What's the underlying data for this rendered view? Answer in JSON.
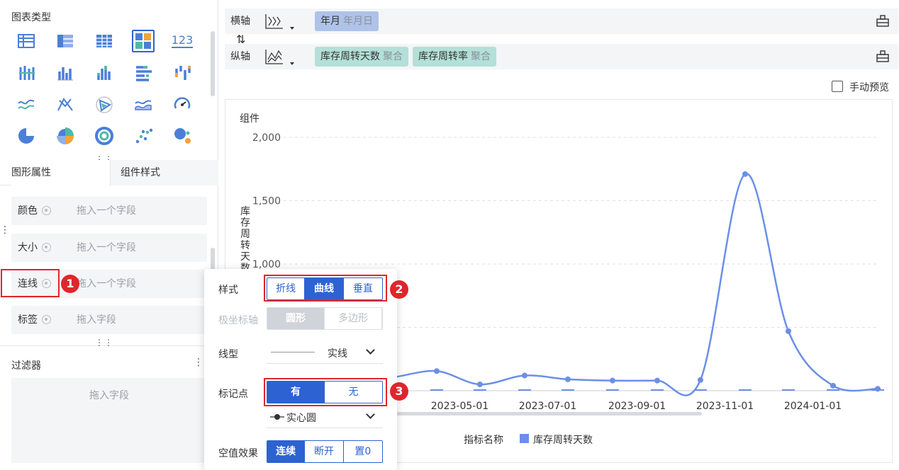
{
  "left": {
    "chart_types_title": "图表类型",
    "chart_type_icons": [
      "table-icon",
      "pivot-table-icon",
      "detail-table-icon",
      "dashboard-card-icon",
      "kpi-number-icon",
      "grouped-bar-icon",
      "column-icon",
      "stacked-column-icon",
      "horizontal-bar-icon",
      "range-column-icon",
      "line-icon",
      "radar-icon",
      "polar-area-icon",
      "area-icon",
      "gauge-icon",
      "pie-icon",
      "donut-rose-icon",
      "ring-icon",
      "scatter-icon",
      "bubble-icon"
    ],
    "kpi_icon_text": "123",
    "tabs": [
      {
        "label": "图形属性"
      },
      {
        "label": "组件样式"
      }
    ],
    "props": [
      {
        "label": "颜色",
        "placeholder": "拖入一个字段"
      },
      {
        "label": "大小",
        "placeholder": "拖入一个字段"
      },
      {
        "label": "连线",
        "placeholder": "拖入一个字段"
      },
      {
        "label": "标签",
        "placeholder": "拖入字段"
      }
    ],
    "filter_title": "过滤器",
    "filter_placeholder": "拖入字段"
  },
  "badges": [
    "1",
    "2",
    "3"
  ],
  "axes": {
    "x_label": "横轴",
    "y_label": "纵轴",
    "swap_glyph": "⇅",
    "x_pills": [
      {
        "name": "年月",
        "sub": "年月日"
      }
    ],
    "y_pills": [
      {
        "name": "库存周转天数",
        "sub": "聚合"
      },
      {
        "name": "库存周转率",
        "sub": "聚合"
      }
    ]
  },
  "manual_preview": "手动预览",
  "chart_data": {
    "type": "line",
    "title": "组件",
    "ylabel": "库存周转天数",
    "ylim": [
      0,
      2000
    ],
    "yticks": [
      "2,000",
      "1,500",
      "1,000"
    ],
    "xtick_labels": [
      "03-01",
      "2023-05-01",
      "2023-07-01",
      "2023-09-01",
      "2023-11-01",
      "2024-01-01"
    ],
    "legend_title": "指标名称",
    "series": [
      {
        "name": "库存周转天数",
        "color": "#6b8fe8",
        "x": [
          "2023-02-15",
          "2023-03-15",
          "2023-04-15",
          "2023-05-15",
          "2023-06-15",
          "2023-07-15",
          "2023-08-15",
          "2023-09-15",
          "2023-10-15",
          "2023-11-15",
          "2023-12-15",
          "2024-01-15",
          "2024-02-15"
        ],
        "values": [
          80,
          105,
          155,
          50,
          120,
          90,
          80,
          80,
          85,
          1710,
          470,
          40,
          15
        ]
      }
    ]
  },
  "popup": {
    "style_label": "样式",
    "style_options": [
      "折线",
      "曲线",
      "垂直"
    ],
    "style_selected": 1,
    "polar_label": "极坐标轴",
    "polar_options": [
      "圆形",
      "多边形"
    ],
    "line_type_label": "线型",
    "line_type_value": "实线",
    "marker_label": "标记点",
    "marker_options": [
      "有",
      "无"
    ],
    "marker_shape_value": "实心圆",
    "null_label": "空值效果",
    "null_options": [
      "连续",
      "断开",
      "置0"
    ]
  }
}
